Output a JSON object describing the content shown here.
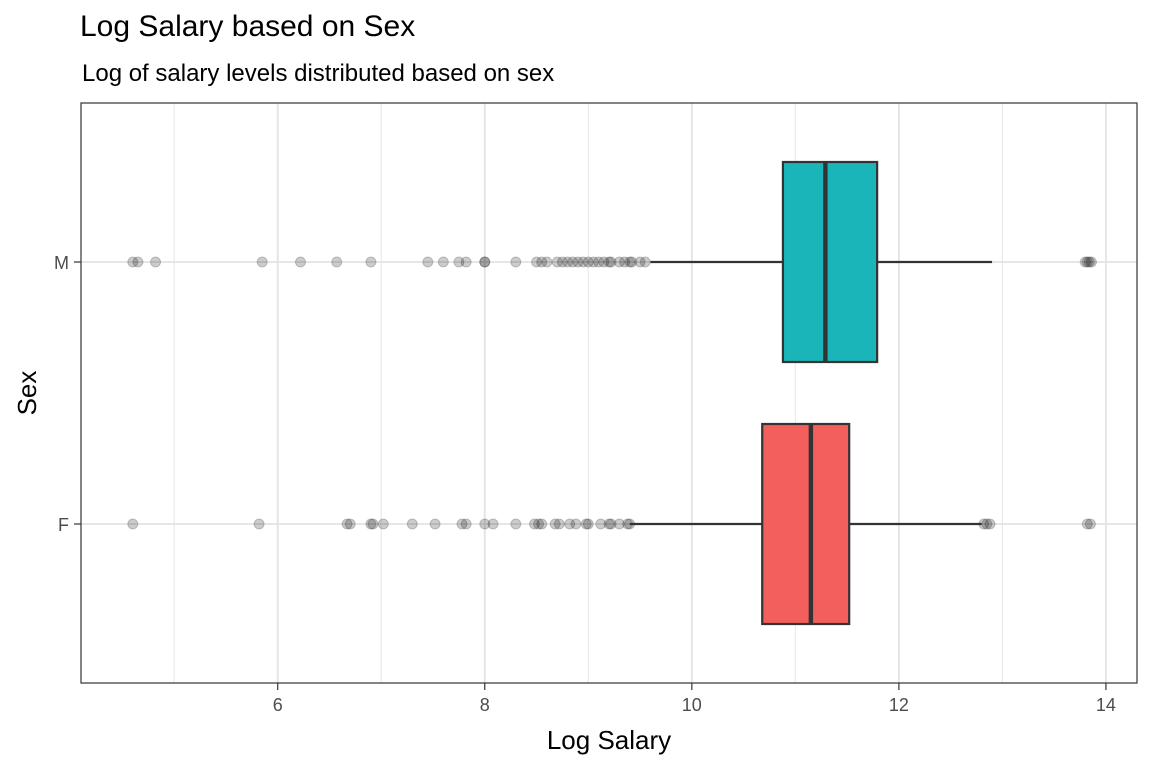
{
  "chart_data": {
    "type": "boxplot",
    "title": "Log Salary based on Sex",
    "subtitle": "Log of salary levels distributed based on sex",
    "xlabel": "Log Salary",
    "ylabel": "Sex",
    "xlim": [
      4.1,
      14.3
    ],
    "x_ticks": [
      6,
      8,
      10,
      12,
      14
    ],
    "x_tick_labels": [
      "6",
      "8",
      "10",
      "12",
      "14"
    ],
    "x_minor_ticks": [
      5,
      7,
      9,
      11,
      13
    ],
    "categories": [
      "F",
      "M"
    ],
    "grid": true,
    "orientation": "horizontal",
    "series": [
      {
        "category": "M",
        "fill": "#19B5B8",
        "whisker_low": 9.6,
        "q1": 10.88,
        "median": 11.29,
        "q3": 11.79,
        "whisker_high": 12.9,
        "outliers": [
          4.6,
          4.65,
          4.82,
          5.85,
          6.22,
          6.57,
          6.9,
          7.45,
          7.6,
          7.75,
          7.82,
          8.0,
          8.0,
          8.3,
          8.5,
          8.55,
          8.6,
          8.7,
          8.75,
          8.8,
          8.85,
          8.9,
          8.95,
          9.0,
          9.05,
          9.1,
          9.15,
          9.2,
          9.22,
          9.3,
          9.35,
          9.4,
          9.42,
          9.5,
          9.55,
          13.8,
          13.82,
          13.84,
          13.86
        ]
      },
      {
        "category": "F",
        "fill": "#F25F5C",
        "whisker_low": 9.4,
        "q1": 10.68,
        "median": 11.15,
        "q3": 11.52,
        "whisker_high": 12.8,
        "outliers": [
          4.6,
          5.82,
          6.67,
          6.7,
          6.9,
          6.92,
          7.02,
          7.3,
          7.52,
          7.78,
          7.82,
          8.0,
          8.08,
          8.3,
          8.48,
          8.52,
          8.55,
          8.68,
          8.72,
          8.82,
          8.88,
          8.98,
          9.0,
          9.12,
          9.2,
          9.22,
          9.3,
          9.38,
          9.4,
          12.82,
          12.85,
          12.88,
          13.82,
          13.85
        ]
      }
    ]
  }
}
